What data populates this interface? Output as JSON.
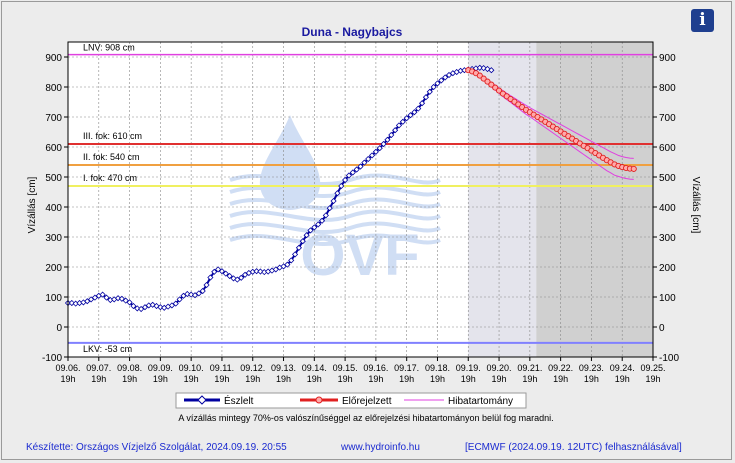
{
  "chart_data": {
    "type": "line",
    "title": "Duna - Nagybajcs",
    "ylabel": "Vízállás [cm]",
    "ylabel_right": "Vízállás [cm]",
    "ylim": [
      -100,
      950
    ],
    "yticks": [
      -100,
      0,
      100,
      200,
      300,
      400,
      500,
      600,
      700,
      800,
      900
    ],
    "x_start": "09.06. 19h",
    "x_end": "09.25. 19h",
    "xtick_dates": [
      "09.06.",
      "09.07.",
      "09.08.",
      "09.09.",
      "09.10.",
      "09.11.",
      "09.12.",
      "09.13.",
      "09.14.",
      "09.15.",
      "09.16.",
      "09.17.",
      "09.18.",
      "09.19.",
      "09.20.",
      "09.21.",
      "09.22.",
      "09.23.",
      "09.24.",
      "09.25."
    ],
    "xtick_hour": "19h",
    "shaded_from": [
      "09.19. 19h",
      "09.22. 0h"
    ],
    "shaded_to": [
      "09.22. 0h",
      "09.25. 19h"
    ],
    "levels": [
      {
        "label": "LNV: 908 cm",
        "value": 908,
        "color": "#e040e0"
      },
      {
        "label": "III. fok: 610 cm",
        "value": 610,
        "color": "#e03030"
      },
      {
        "label": "II. fok: 540 cm",
        "value": 540,
        "color": "#f0a040"
      },
      {
        "label": "I. fok: 470 cm",
        "value": 470,
        "color": "#f0f060"
      },
      {
        "label": "LKV: -53 cm",
        "value": -53,
        "color": "#8080ff"
      }
    ],
    "series": [
      {
        "name": "Észlelt",
        "color": "#0000a0",
        "marker": "diamond",
        "values": [
          80,
          80,
          78,
          80,
          82,
          86,
          92,
          98,
          104,
          108,
          98,
          90,
          92,
          96,
          94,
          88,
          82,
          70,
          62,
          60,
          66,
          72,
          74,
          70,
          66,
          64,
          68,
          72,
          78,
          92,
          104,
          110,
          108,
          106,
          112,
          120,
          140,
          165,
          184,
          192,
          186,
          178,
          170,
          162,
          158,
          164,
          174,
          180,
          184,
          186,
          185,
          183,
          185,
          188,
          192,
          198,
          202,
          208,
          222,
          242,
          264,
          286,
          306,
          322,
          332,
          342,
          354,
          372,
          396,
          420,
          446,
          470,
          490,
          505,
          515,
          525,
          535,
          548,
          560,
          572,
          584,
          596,
          610,
          624,
          640,
          656,
          672,
          684,
          696,
          706,
          716,
          728,
          746,
          766,
          784,
          800,
          812,
          822,
          832,
          840,
          846,
          850,
          854,
          856,
          858,
          860,
          862,
          864,
          863,
          860,
          856
        ]
      },
      {
        "name": "Előrejelzett",
        "color": "#e02020",
        "marker": "circle",
        "values": [
          856,
          852,
          846,
          838,
          828,
          818,
          808,
          798,
          788,
          778,
          769,
          760,
          751,
          742,
          733,
          724,
          716,
          708,
          700,
          692,
          684,
          676,
          668,
          660,
          652,
          644,
          636,
          628,
          620,
          612,
          604,
          596,
          588,
          580,
          572,
          564,
          556,
          549,
          542,
          537,
          533,
          530,
          528,
          527
        ]
      },
      {
        "name": "Hibatartomány",
        "color": "#e040e0",
        "upper": [
          856,
          854,
          849,
          842,
          833,
          824,
          815,
          806,
          797,
          788,
          779,
          771,
          763,
          755,
          747,
          739,
          731,
          724,
          717,
          710,
          703,
          696,
          689,
          682,
          675,
          668,
          661,
          654,
          647,
          640,
          633,
          626,
          619,
          612,
          605,
          598,
          591,
          584,
          578,
          572,
          568,
          565,
          563,
          562
        ],
        "lower": [
          856,
          850,
          843,
          834,
          823,
          812,
          801,
          790,
          779,
          768,
          758,
          749,
          739,
          729,
          719,
          709,
          701,
          692,
          683,
          674,
          665,
          656,
          647,
          638,
          629,
          620,
          611,
          602,
          593,
          584,
          575,
          566,
          557,
          548,
          539,
          530,
          521,
          514,
          506,
          502,
          498,
          495,
          493,
          492
        ]
      }
    ],
    "grid": true,
    "legend_position": "bottom"
  },
  "legend": {
    "observed": "Észlelt",
    "forecast": "Előrejelzett",
    "error_band": "Hibatartomány"
  },
  "note": "A vízállás mintegy 70%-os valószínűséggel az előrejelzési hibatartományon belül fog maradni.",
  "footer": {
    "left": "Készítette: Országos Vízjelző Szolgálat, 2024.09.19. 20:55",
    "center": "www.hydroinfo.hu",
    "right": "[ECMWF (2024.09.19. 12UTC) felhasználásával]"
  },
  "watermark": "OVF",
  "info_button": "i"
}
